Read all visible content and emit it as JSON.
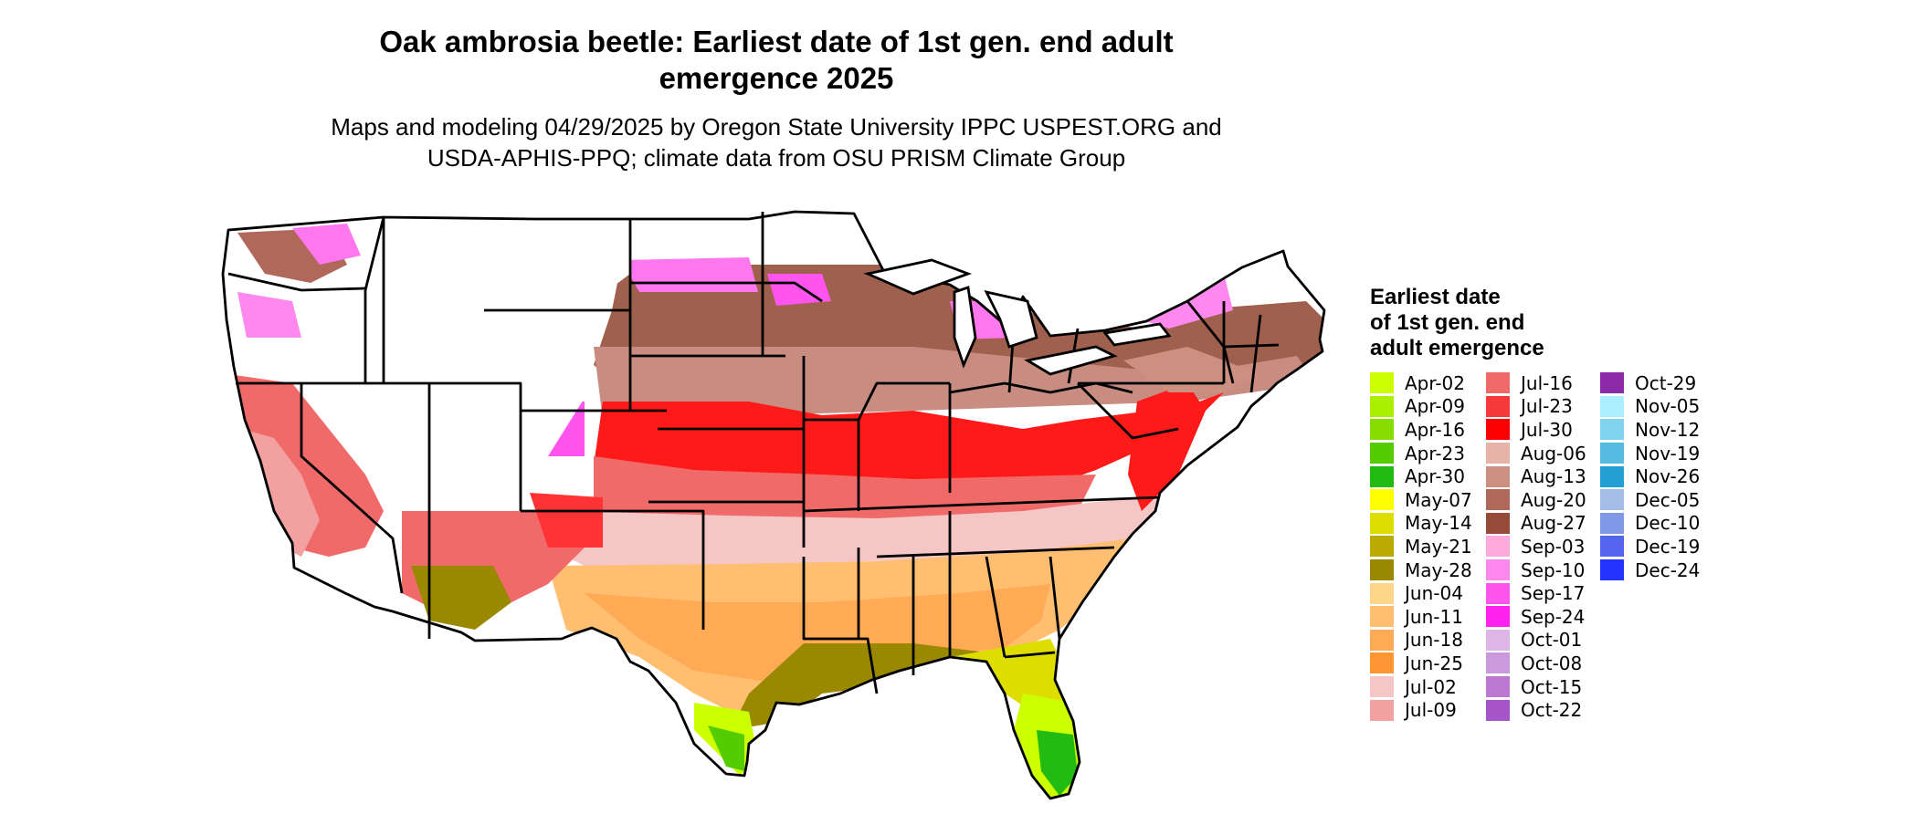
{
  "title": "Oak ambrosia beetle: Earliest date of 1st gen. end adult emergence 2025",
  "subtitle": "Maps and modeling 04/29/2025 by Oregon State University IPPC USPEST.ORG and USDA-APHIS-PPQ; climate data from OSU PRISM Climate Group",
  "legend": {
    "title": "Earliest date\nof 1st gen. end\nadult emergence",
    "columns": [
      [
        {
          "label": "Apr-02",
          "color": "#ccff00"
        },
        {
          "label": "Apr-09",
          "color": "#aaee00"
        },
        {
          "label": "Apr-16",
          "color": "#88dd00"
        },
        {
          "label": "Apr-23",
          "color": "#55cc00"
        },
        {
          "label": "Apr-30",
          "color": "#22bb11"
        },
        {
          "label": "May-07",
          "color": "#ffff00"
        },
        {
          "label": "May-14",
          "color": "#dddd00"
        },
        {
          "label": "May-21",
          "color": "#bbaa00"
        },
        {
          "label": "May-28",
          "color": "#998800"
        },
        {
          "label": "Jun-04",
          "color": "#ffd58a"
        },
        {
          "label": "Jun-11",
          "color": "#ffbe70"
        },
        {
          "label": "Jun-18",
          "color": "#ffaa55"
        },
        {
          "label": "Jun-25",
          "color": "#ff9633"
        },
        {
          "label": "Jul-02",
          "color": "#f5c6c6"
        },
        {
          "label": "Jul-09",
          "color": "#f3a0a0"
        }
      ],
      [
        {
          "label": "Jul-16",
          "color": "#f06a6a"
        },
        {
          "label": "Jul-23",
          "color": "#f53838"
        },
        {
          "label": "Jul-30",
          "color": "#ff0000"
        },
        {
          "label": "Aug-06",
          "color": "#e7b3a8"
        },
        {
          "label": "Aug-13",
          "color": "#cc8f80"
        },
        {
          "label": "Aug-20",
          "color": "#b0685a"
        },
        {
          "label": "Aug-27",
          "color": "#964a3a"
        },
        {
          "label": "Sep-03",
          "color": "#ffaadd"
        },
        {
          "label": "Sep-10",
          "color": "#ff88ee"
        },
        {
          "label": "Sep-17",
          "color": "#ff55ee"
        },
        {
          "label": "Sep-24",
          "color": "#ff22ee"
        },
        {
          "label": "Oct-01",
          "color": "#ddb6e6"
        },
        {
          "label": "Oct-08",
          "color": "#cc99dd"
        },
        {
          "label": "Oct-15",
          "color": "#bb77d2"
        },
        {
          "label": "Oct-22",
          "color": "#a555c7"
        }
      ],
      [
        {
          "label": "Oct-29",
          "color": "#8a2aaa"
        },
        {
          "label": "Nov-05",
          "color": "#aaeeff"
        },
        {
          "label": "Nov-12",
          "color": "#80d2ee"
        },
        {
          "label": "Nov-19",
          "color": "#55bbe0"
        },
        {
          "label": "Nov-26",
          "color": "#22a0d5"
        },
        {
          "label": "Dec-05",
          "color": "#a5bde6"
        },
        {
          "label": "Dec-10",
          "color": "#7f99e7"
        },
        {
          "label": "Dec-19",
          "color": "#5566ee"
        },
        {
          "label": "Dec-24",
          "color": "#2233ff"
        }
      ]
    ]
  }
}
